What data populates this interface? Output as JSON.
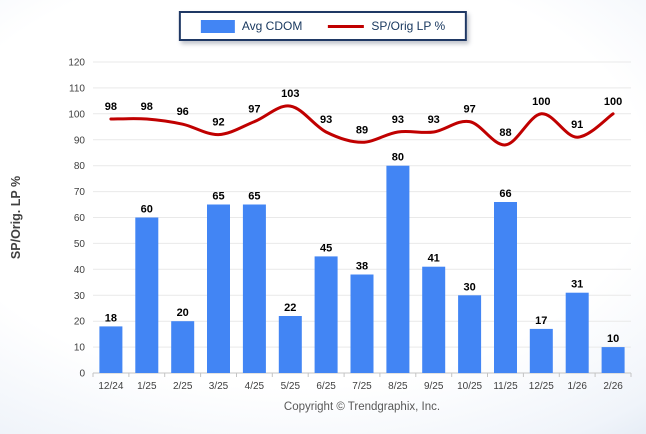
{
  "legend": {
    "series1_label": "Avg CDOM",
    "series2_label": "SP/Orig LP %"
  },
  "footer": {
    "copyright": "Copyright © Trendgraphix, Inc."
  },
  "colors": {
    "bar": "#4285f4",
    "line": "#c00000",
    "legend_border": "#1f3864",
    "grid": "#e9e9e9",
    "axis": "#c4c4c4",
    "tick_label": "#404040",
    "axis_title": "#404040",
    "data_label": "#000000"
  },
  "chart_data": {
    "type": "bar",
    "subtype": "bar-and-line-combo",
    "categories": [
      "12/24",
      "1/25",
      "2/25",
      "3/25",
      "4/25",
      "5/25",
      "6/25",
      "7/25",
      "8/25",
      "9/25",
      "10/25",
      "11/25",
      "12/25",
      "1/26",
      "2/26"
    ],
    "series": [
      {
        "name": "Avg CDOM",
        "type": "bar",
        "values": [
          18,
          60,
          20,
          65,
          65,
          22,
          45,
          38,
          80,
          41,
          30,
          66,
          17,
          31,
          10
        ]
      },
      {
        "name": "SP/Orig LP %",
        "type": "line",
        "values": [
          98,
          98,
          96,
          92,
          97,
          103,
          93,
          89,
          93,
          93,
          97,
          88,
          100,
          91,
          100
        ]
      }
    ],
    "title": "",
    "xlabel": "",
    "ylabel": "SP/Orig. LP %",
    "ylim": [
      0,
      120
    ],
    "ytick_step": 10,
    "grid": true,
    "legend_position": "top-center",
    "data_labels": true
  }
}
